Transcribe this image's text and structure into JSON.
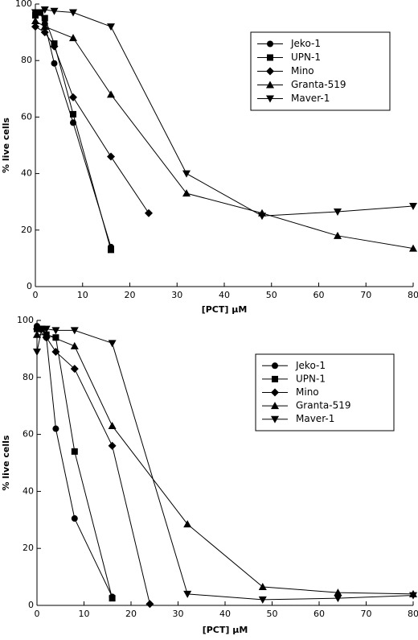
{
  "chart_data": [
    {
      "type": "line",
      "xlabel": "[PCT] μM",
      "ylabel": "% live cells",
      "xlim": [
        0,
        80
      ],
      "ylim": [
        0,
        100
      ],
      "xticks": [
        0,
        10,
        20,
        30,
        40,
        50,
        60,
        70,
        80
      ],
      "yticks": [
        0,
        20,
        40,
        60,
        80,
        100
      ],
      "series": [
        {
          "name": "Jeko-1",
          "color": "#000000",
          "marker": "circle",
          "x": [
            0,
            1,
            2,
            4,
            8,
            16
          ],
          "values": [
            97,
            97,
            93,
            79,
            58,
            14
          ]
        },
        {
          "name": "UPN-1",
          "color": "#000000",
          "marker": "square",
          "x": [
            0,
            1,
            2,
            4,
            8,
            16
          ],
          "values": [
            96,
            97,
            95,
            86,
            61,
            13
          ]
        },
        {
          "name": "Mino",
          "color": "#000000",
          "marker": "diamond",
          "x": [
            0,
            2,
            4,
            8,
            16,
            24
          ],
          "values": [
            92,
            90,
            85,
            67,
            46,
            26
          ]
        },
        {
          "name": "Granta-519",
          "color": "#000000",
          "marker": "triangle-up",
          "x": [
            0,
            2,
            8,
            16,
            32,
            48,
            64,
            80
          ],
          "values": [
            94,
            92,
            88,
            68,
            33,
            26,
            18,
            13.5
          ]
        },
        {
          "name": "Maver-1",
          "color": "#000000",
          "marker": "triangle-down",
          "x": [
            0,
            1,
            2,
            4,
            8,
            16,
            32,
            48,
            64,
            80
          ],
          "values": [
            97,
            97,
            98,
            97.5,
            97,
            92,
            40,
            25,
            26.5,
            28.5
          ]
        }
      ]
    },
    {
      "type": "line",
      "xlabel": "[PCT] μM",
      "ylabel": "% live cells",
      "xlim": [
        0,
        80
      ],
      "ylim": [
        0,
        100
      ],
      "xticks": [
        0,
        10,
        20,
        30,
        40,
        50,
        60,
        70,
        80
      ],
      "yticks": [
        0,
        20,
        40,
        60,
        80,
        100
      ],
      "series": [
        {
          "name": "Jeko-1",
          "color": "#000000",
          "marker": "circle",
          "x": [
            0,
            1,
            2,
            4,
            8,
            16
          ],
          "values": [
            98,
            97,
            94,
            62,
            30.5,
            3
          ]
        },
        {
          "name": "UPN-1",
          "color": "#000000",
          "marker": "square",
          "x": [
            0,
            1,
            2,
            4,
            8,
            16
          ],
          "values": [
            97,
            97,
            95,
            94,
            54,
            2.5
          ]
        },
        {
          "name": "Mino",
          "color": "#000000",
          "marker": "diamond",
          "x": [
            0,
            2,
            4,
            8,
            16,
            24
          ],
          "values": [
            97,
            94,
            89,
            83,
            56,
            0.5
          ]
        },
        {
          "name": "Granta-519",
          "color": "#000000",
          "marker": "triangle-up",
          "x": [
            0,
            2,
            8,
            16,
            32,
            48,
            64,
            80
          ],
          "values": [
            95,
            95,
            91,
            63,
            28.5,
            6.5,
            4.5,
            4
          ]
        },
        {
          "name": "Maver-1",
          "color": "#000000",
          "marker": "triangle-down",
          "x": [
            0,
            1,
            2,
            4,
            8,
            16,
            32,
            48,
            64,
            80
          ],
          "values": [
            89,
            97,
            97,
            96.5,
            96.5,
            92,
            4,
            2,
            2.5,
            3.5
          ]
        }
      ]
    }
  ]
}
